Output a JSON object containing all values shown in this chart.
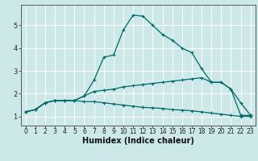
{
  "title": "",
  "xlabel": "Humidex (Indice chaleur)",
  "bg_color": "#cce8e8",
  "grid_color": "#ffffff",
  "line_color": "#006868",
  "xlim": [
    -0.5,
    23.5
  ],
  "ylim": [
    0.6,
    5.9
  ],
  "xticks": [
    0,
    1,
    2,
    3,
    4,
    5,
    6,
    7,
    8,
    9,
    10,
    11,
    12,
    13,
    14,
    15,
    16,
    17,
    18,
    19,
    20,
    21,
    22,
    23
  ],
  "yticks": [
    1,
    2,
    3,
    4,
    5
  ],
  "series2_x": [
    0,
    1,
    2,
    3,
    4,
    5,
    6,
    7,
    8,
    9,
    10,
    11,
    12,
    13,
    14,
    15,
    16,
    17,
    18,
    19,
    20,
    21,
    22,
    23
  ],
  "series2_y": [
    1.2,
    1.3,
    1.6,
    1.7,
    1.7,
    1.7,
    1.9,
    2.6,
    3.6,
    3.7,
    4.8,
    5.45,
    5.4,
    5.0,
    4.6,
    4.35,
    4.0,
    3.8,
    3.1,
    2.5,
    2.5,
    2.2,
    1.6,
    1.05
  ],
  "series1_x": [
    0,
    1,
    2,
    3,
    4,
    5,
    6,
    7,
    8,
    9,
    10,
    11,
    12,
    13,
    14,
    15,
    16,
    17,
    18,
    19,
    20,
    21,
    22,
    23
  ],
  "series1_y": [
    1.2,
    1.3,
    1.6,
    1.7,
    1.7,
    1.7,
    1.9,
    2.1,
    2.15,
    2.2,
    2.3,
    2.35,
    2.4,
    2.45,
    2.5,
    2.55,
    2.6,
    2.65,
    2.7,
    2.5,
    2.5,
    2.2,
    1.05,
    1.05
  ],
  "series3_x": [
    0,
    1,
    2,
    3,
    4,
    5,
    6,
    7,
    8,
    9,
    10,
    11,
    12,
    13,
    14,
    15,
    16,
    17,
    18,
    19,
    20,
    21,
    22,
    23
  ],
  "series3_y": [
    1.2,
    1.3,
    1.6,
    1.7,
    1.7,
    1.7,
    1.65,
    1.65,
    1.6,
    1.55,
    1.5,
    1.45,
    1.4,
    1.38,
    1.35,
    1.3,
    1.28,
    1.25,
    1.2,
    1.15,
    1.1,
    1.05,
    1.0,
    1.0
  ],
  "xlabel_fontsize": 7,
  "tick_fontsize": 5.5,
  "linewidth": 0.9,
  "markersize": 3.5
}
